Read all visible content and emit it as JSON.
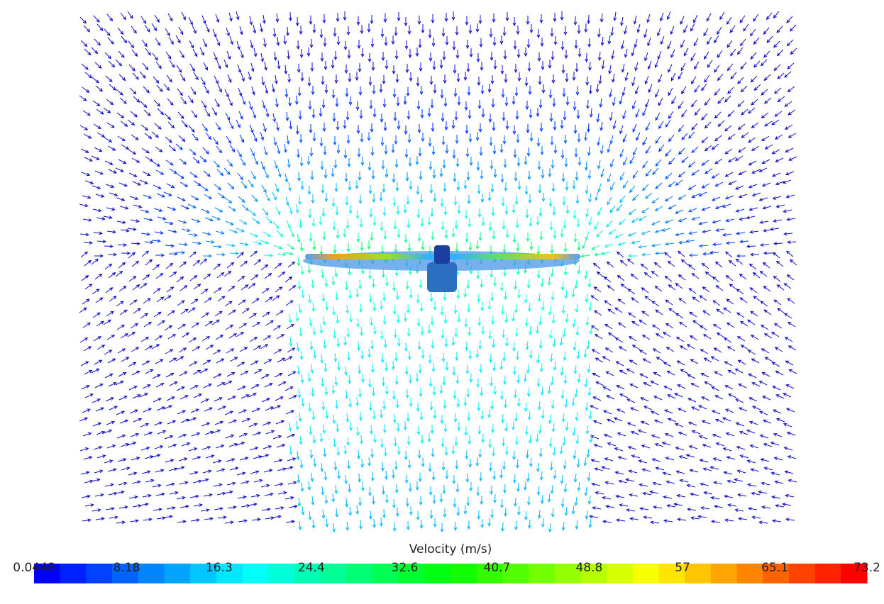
{
  "colorbar": {
    "title": "Velocity (m/s)",
    "range": [
      0.0448,
      73.2
    ],
    "ticks": [
      0.0448,
      8.18,
      16.3,
      24.4,
      32.6,
      40.7,
      48.8,
      57,
      65.1,
      73.2
    ]
  }
}
